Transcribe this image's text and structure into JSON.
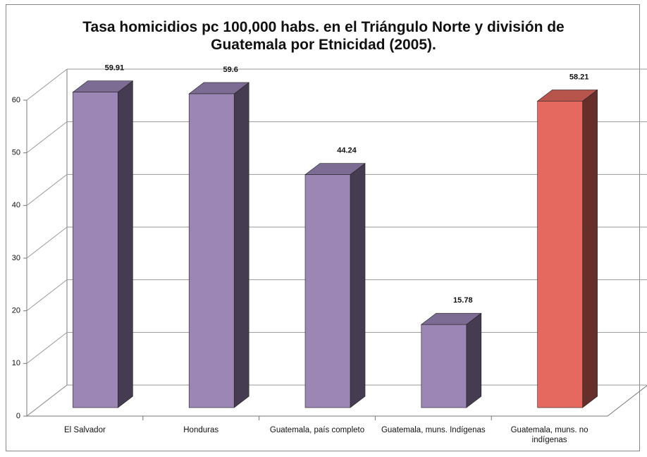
{
  "chart_data": {
    "type": "bar3d",
    "title": "Tasa homicidios pc 100,000 habs. en el Triángulo Norte y división de Guatemala por Etnicidad (2005).",
    "categories": [
      "El Salvador",
      "Honduras",
      "Guatemala, país completo",
      "Guatemala, muns. Indígenas",
      "Guatemala, muns. no indígenas"
    ],
    "values": [
      59.91,
      59.6,
      44.24,
      15.78,
      58.21
    ],
    "colors": [
      "#9b86b6",
      "#9b86b6",
      "#9b86b6",
      "#9b86b6",
      "#e5695f"
    ],
    "ylim": [
      0,
      60
    ],
    "yticks": [
      0,
      10,
      20,
      30,
      40,
      50,
      60
    ],
    "grid": true
  }
}
